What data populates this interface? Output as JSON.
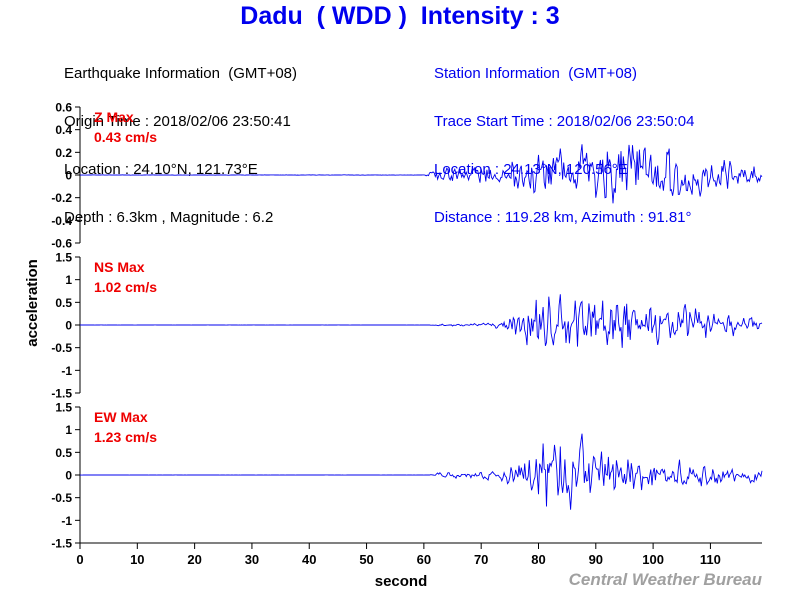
{
  "header": {
    "title": "Dadu  ( WDD )  Intensity : 3",
    "earthquake_info": [
      "Earthquake Information  (GMT+08)",
      "Origin Time : 2018/02/06 23:50:41",
      "Location : 24.10°N, 121.73°E",
      "Depth : 6.3km , Magnitude : 6.2"
    ],
    "station_info": [
      "Station Information  (GMT+08)",
      "Trace Start Time : 2018/02/06 23:50:04",
      "Location : 24.13°N, 120.56°E",
      "Distance : 119.28 km, Azimuth : 91.81°"
    ]
  },
  "footer": {
    "credit": "Central Weather Bureau"
  },
  "colors": {
    "title": "#0000ee",
    "trace": "#0000ee",
    "max_label": "#ee0000",
    "station_text": "#0000ee",
    "credit": "#a0a0a0"
  },
  "chart_data": {
    "type": "line",
    "xlabel": "second",
    "ylabel": "acceleration",
    "xlim": [
      0,
      119
    ],
    "x_ticks": [
      0,
      10,
      20,
      30,
      40,
      50,
      60,
      70,
      80,
      90,
      100,
      110
    ],
    "panels": [
      {
        "name": "Z",
        "max_label": "Z Max",
        "max_value": "0.43 cm/s",
        "ylim": [
          -0.6,
          0.6
        ],
        "y_ticks": [
          0.6,
          0.4,
          0.2,
          0,
          -0.2,
          -0.4,
          -0.6
        ],
        "y_tick_labels": [
          "0.6",
          "0.4",
          "0.2",
          "0",
          "-0.2",
          "-0.4",
          "-0.6"
        ],
        "envelope": [
          [
            0,
            0.002
          ],
          [
            60,
            0.002
          ],
          [
            61,
            0.03
          ],
          [
            64,
            0.08
          ],
          [
            70,
            0.12
          ],
          [
            75,
            0.14
          ],
          [
            80,
            0.2
          ],
          [
            86,
            0.28
          ],
          [
            90,
            0.3
          ],
          [
            95,
            0.33
          ],
          [
            98,
            0.42
          ],
          [
            100,
            0.32
          ],
          [
            105,
            0.24
          ],
          [
            110,
            0.15
          ],
          [
            115,
            0.13
          ],
          [
            119,
            0.08
          ]
        ]
      },
      {
        "name": "NS",
        "max_label": "NS Max",
        "max_value": "1.02 cm/s",
        "ylim": [
          -1.5,
          1.5
        ],
        "y_ticks": [
          1.5,
          1,
          0.5,
          0,
          -0.5,
          -1,
          -1.5
        ],
        "y_tick_labels": [
          "1.5",
          "1",
          "0.5",
          "0",
          "-0.5",
          "-1",
          "-1.5"
        ],
        "envelope": [
          [
            0,
            0.002
          ],
          [
            61,
            0.002
          ],
          [
            62,
            0.02
          ],
          [
            70,
            0.04
          ],
          [
            74,
            0.1
          ],
          [
            77,
            0.4
          ],
          [
            80,
            0.9
          ],
          [
            83,
            1.0
          ],
          [
            86,
            0.75
          ],
          [
            89,
            0.85
          ],
          [
            92,
            0.7
          ],
          [
            96,
            0.55
          ],
          [
            100,
            0.5
          ],
          [
            104,
            0.55
          ],
          [
            108,
            0.4
          ],
          [
            112,
            0.3
          ],
          [
            116,
            0.2
          ],
          [
            119,
            0.15
          ]
        ]
      },
      {
        "name": "EW",
        "max_label": "EW Max",
        "max_value": "1.23 cm/s",
        "ylim": [
          -1.5,
          1.5
        ],
        "y_ticks": [
          1.5,
          1,
          0.5,
          0,
          -0.5,
          -1,
          -1.5
        ],
        "y_tick_labels": [
          "1.5",
          "1",
          "0.5",
          "0",
          "-0.5",
          "-1",
          "-1.5"
        ],
        "envelope": [
          [
            0,
            0.002
          ],
          [
            61,
            0.002
          ],
          [
            62,
            0.05
          ],
          [
            70,
            0.1
          ],
          [
            76,
            0.25
          ],
          [
            79,
            0.55
          ],
          [
            82,
            1.2
          ],
          [
            85,
            0.7
          ],
          [
            88,
            0.8
          ],
          [
            92,
            0.6
          ],
          [
            96,
            0.45
          ],
          [
            100,
            0.4
          ],
          [
            104,
            0.35
          ],
          [
            110,
            0.25
          ],
          [
            115,
            0.2
          ],
          [
            119,
            0.15
          ]
        ]
      }
    ]
  }
}
